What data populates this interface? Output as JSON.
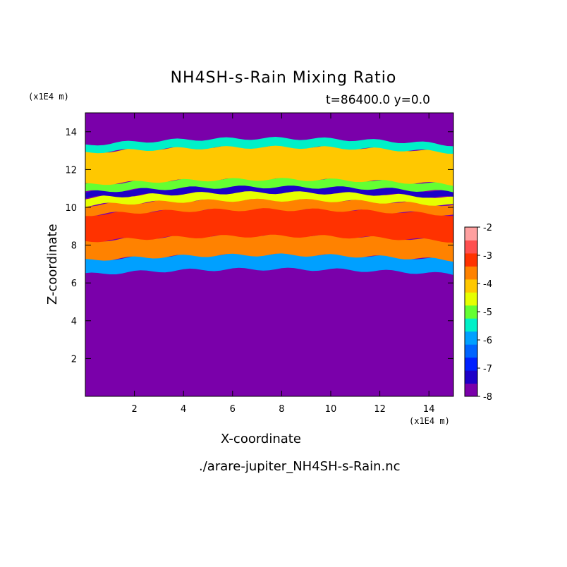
{
  "chart_data": {
    "type": "heatmap",
    "title": "NH4SH-s-Rain Mixing Ratio",
    "subtitle": "t=86400.0 y=0.0",
    "xlabel": "X-coordinate",
    "ylabel": "Z-coordinate",
    "x_unit_label": "(x1E4 m)",
    "y_unit_label": "(x1E4 m)",
    "xlim": [
      0,
      15
    ],
    "ylim": [
      0,
      15
    ],
    "x_ticks": [
      2,
      4,
      6,
      8,
      10,
      12,
      14
    ],
    "y_ticks": [
      2,
      4,
      6,
      8,
      10,
      12,
      14
    ],
    "colorbar": {
      "min": -8,
      "max": -2,
      "ticks": [
        -2,
        -3,
        -4,
        -5,
        -6,
        -7,
        -8
      ],
      "levels": [
        {
          "from": -8.0,
          "to": -7.5,
          "color": "#7a00aa"
        },
        {
          "from": -7.5,
          "to": -7.0,
          "color": "#1e00c8"
        },
        {
          "from": -7.0,
          "to": -6.5,
          "color": "#0020ff"
        },
        {
          "from": -6.5,
          "to": -6.0,
          "color": "#0064ff"
        },
        {
          "from": -6.0,
          "to": -5.5,
          "color": "#00a0ff"
        },
        {
          "from": -5.5,
          "to": -5.0,
          "color": "#00f0c8"
        },
        {
          "from": -5.0,
          "to": -4.5,
          "color": "#64ff32"
        },
        {
          "from": -4.5,
          "to": -4.0,
          "color": "#e6ff00"
        },
        {
          "from": -4.0,
          "to": -3.5,
          "color": "#ffc800"
        },
        {
          "from": -3.5,
          "to": -3.0,
          "color": "#ff8200"
        },
        {
          "from": -3.0,
          "to": -2.5,
          "color": "#ff3200"
        },
        {
          "from": -2.5,
          "to": -2.0,
          "color": "#ff5050"
        },
        {
          "from": -2.5,
          "to": -2.0,
          "color": "#ffa0a0"
        }
      ]
    },
    "bands": [
      {
        "z": [
          0.0,
          6.45
        ],
        "level": -8,
        "description": ""
      },
      {
        "z": [
          6.45,
          7.2
        ],
        "level": -6
      },
      {
        "z": [
          7.2,
          8.2
        ],
        "level": -3.5
      },
      {
        "z": [
          8.2,
          9.6
        ],
        "level": -2.7
      },
      {
        "z": [
          9.6,
          10.1
        ],
        "level": -3.5
      },
      {
        "z": [
          10.1,
          10.5
        ],
        "level": -4.2
      },
      {
        "z": [
          10.5,
          10.8
        ],
        "level": -7.2
      },
      {
        "z": [
          10.8,
          11.2
        ],
        "level": -4.8
      },
      {
        "z": [
          11.2,
          12.9
        ],
        "level": -3.7
      },
      {
        "z": [
          12.9,
          13.3
        ],
        "level": -5.5
      },
      {
        "z": [
          13.3,
          15.0
        ],
        "level": -8
      }
    ]
  },
  "source_file": "./arare-jupiter_NH4SH-s-Rain.nc"
}
